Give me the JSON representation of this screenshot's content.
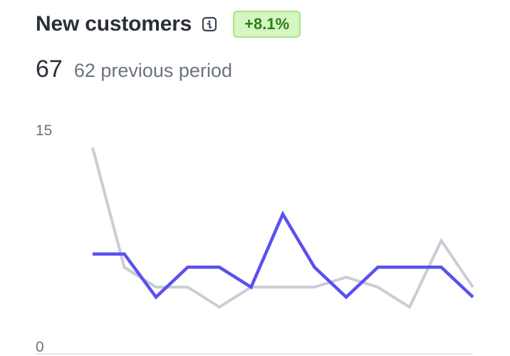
{
  "header": {
    "title": "New customers",
    "info_icon": "info-icon",
    "change_badge": "+8.1%",
    "badge_color": "#2e7d18",
    "badge_bg": "#d5f5c2"
  },
  "metrics": {
    "current_value": "67",
    "previous_label": "62 previous period"
  },
  "chart_data": {
    "type": "line",
    "x": [
      1,
      2,
      3,
      4,
      5,
      6,
      7,
      8,
      9,
      10,
      11,
      12,
      13
    ],
    "ylim": [
      0,
      15
    ],
    "y_tick_labels": [
      "15",
      "0"
    ],
    "grid": false,
    "legend": "none",
    "series": [
      {
        "color": "#c9cdd4",
        "values": [
          14.5,
          5.5,
          4.0,
          4.0,
          2.5,
          4.0,
          4.0,
          4.0,
          4.75,
          4.0,
          2.5,
          7.5,
          4.0
        ]
      },
      {
        "color": "#5b50f0",
        "values": [
          6.5,
          6.5,
          3.25,
          5.5,
          5.5,
          4.0,
          9.5,
          5.5,
          3.25,
          5.5,
          5.5,
          5.5,
          3.25
        ]
      }
    ]
  }
}
